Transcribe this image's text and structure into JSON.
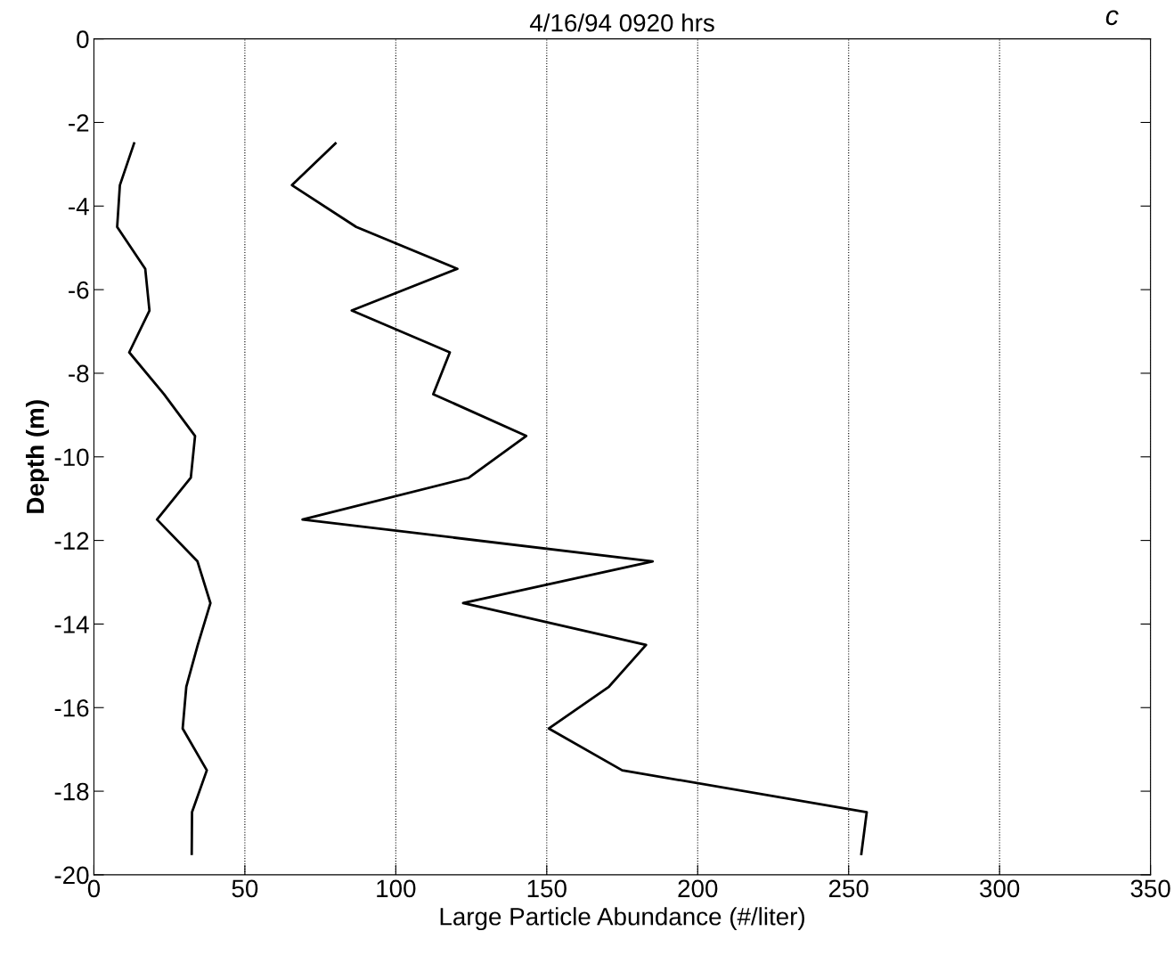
{
  "chart_data": {
    "type": "line",
    "title": "4/16/94 0920 hrs",
    "xlabel": "Large Particle Abundance (#/liter)",
    "ylabel": "Depth (m)",
    "annotations": [
      "c"
    ],
    "xlim": [
      0,
      350
    ],
    "xticks": [
      0,
      50,
      100,
      150,
      200,
      250,
      300,
      350
    ],
    "ylim": [
      -20,
      0
    ],
    "yticks": [
      -20,
      -18,
      -16,
      -14,
      -12,
      -10,
      -8,
      -6,
      -4,
      -2,
      0
    ],
    "grid": "x",
    "line_style": "solid",
    "marker": "none",
    "series": [
      {
        "color": "#000000",
        "x": [
          13.3,
          8.6,
          7.7,
          17.0,
          18.4,
          11.7,
          23.2,
          33.5,
          32.1,
          20.9,
          34.3,
          38.6,
          34.4,
          30.6,
          29.4,
          37.4,
          32.5,
          32.4
        ],
        "values": [
          -2.5,
          -3.5,
          -4.5,
          -5.5,
          -6.5,
          -7.5,
          -8.5,
          -9.5,
          -10.5,
          -11.5,
          -12.5,
          -13.5,
          -14.5,
          -15.5,
          -16.5,
          -17.5,
          -18.5,
          -19.5
        ]
      },
      {
        "color": "#000000",
        "x": [
          80,
          65.6,
          86.9,
          120.4,
          85.4,
          117.9,
          112.4,
          143.2,
          124.2,
          69.1,
          185.1,
          122.3,
          182.9,
          170.6,
          150.7,
          175.0,
          256.0,
          254.2
        ],
        "values": [
          -2.5,
          -3.5,
          -4.5,
          -5.5,
          -6.5,
          -7.5,
          -8.5,
          -9.5,
          -10.5,
          -11.5,
          -12.5,
          -13.5,
          -14.5,
          -15.5,
          -16.5,
          -17.5,
          -18.5,
          -19.5
        ]
      }
    ]
  }
}
